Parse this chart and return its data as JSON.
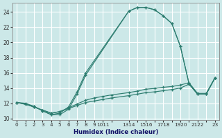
{
  "xlabel": "Humidex (Indice chaleur)",
  "bg_color": "#cce8e8",
  "grid_color": "#ffffff",
  "line_color": "#2d7d70",
  "xlim": [
    -0.5,
    23.5
  ],
  "ylim": [
    9.8,
    25.2
  ],
  "yticks": [
    10,
    12,
    14,
    16,
    18,
    20,
    22,
    24
  ],
  "xtick_positions": [
    0,
    1,
    2,
    3,
    4,
    5,
    6,
    7,
    8,
    9,
    10,
    11,
    13,
    14,
    15,
    16,
    17,
    18,
    19,
    20,
    21,
    22,
    23
  ],
  "xtick_labels": [
    "0",
    "1",
    "2",
    "3",
    "4",
    "5",
    "6",
    "7",
    "8",
    "9",
    "1011",
    "",
    "1314",
    "",
    "1516",
    "",
    "1718",
    "",
    "1920",
    "",
    "2122",
    "",
    "23"
  ],
  "curve_upper": {
    "x": [
      0,
      1,
      2,
      3,
      4,
      5,
      6,
      7,
      8,
      13,
      14,
      15,
      16,
      17,
      18,
      19,
      20,
      21,
      22,
      23
    ],
    "y": [
      12.1,
      12.0,
      11.6,
      11.0,
      10.5,
      10.5,
      11.2,
      13.2,
      15.7,
      24.1,
      24.6,
      24.6,
      24.3,
      23.5,
      22.5,
      19.5,
      14.6,
      13.2,
      13.2,
      15.3
    ]
  },
  "curve_mid": {
    "x": [
      0,
      2,
      3,
      4,
      5,
      6,
      7,
      8,
      13,
      14,
      15,
      16,
      17,
      18,
      19,
      20,
      21,
      22,
      23
    ],
    "y": [
      12.1,
      11.6,
      11.0,
      10.5,
      10.7,
      11.5,
      13.5,
      16.0,
      24.1,
      24.6,
      24.6,
      24.3,
      23.5,
      22.5,
      19.5,
      14.6,
      13.2,
      13.2,
      15.3
    ]
  },
  "curve_flat1": {
    "x": [
      0,
      1,
      2,
      3,
      4,
      5,
      6,
      7,
      8,
      9,
      10,
      11,
      13,
      14,
      15,
      16,
      17,
      18,
      19,
      20,
      21,
      22,
      23
    ],
    "y": [
      12.1,
      11.9,
      11.5,
      11.1,
      10.7,
      10.9,
      11.3,
      11.7,
      12.1,
      12.3,
      12.5,
      12.7,
      13.0,
      13.2,
      13.4,
      13.5,
      13.65,
      13.8,
      14.0,
      14.5,
      13.2,
      13.2,
      15.3
    ]
  },
  "curve_flat2": {
    "x": [
      0,
      1,
      2,
      3,
      4,
      5,
      6,
      7,
      8,
      9,
      10,
      11,
      13,
      14,
      15,
      16,
      17,
      18,
      19,
      20,
      21,
      22,
      23
    ],
    "y": [
      12.1,
      11.9,
      11.5,
      11.1,
      10.7,
      10.9,
      11.4,
      11.9,
      12.4,
      12.7,
      12.9,
      13.1,
      13.4,
      13.6,
      13.85,
      13.95,
      14.1,
      14.2,
      14.4,
      14.7,
      13.3,
      13.3,
      15.3
    ]
  }
}
